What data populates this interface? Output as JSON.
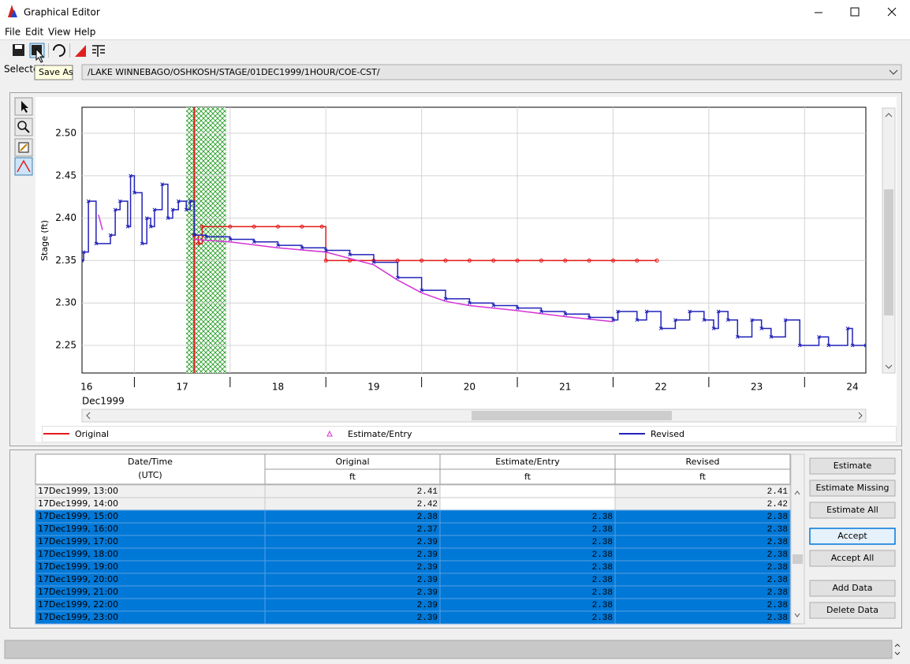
{
  "window": {
    "title": "Graphical Editor"
  },
  "menu": [
    "File",
    "Edit",
    "View",
    "Help"
  ],
  "tooltip": "Save As",
  "selected_label": "Selected",
  "pathname": "/LAKE WINNEBAGO/OSHKOSH/STAGE/01DEC1999/1HOUR/COE-CST/",
  "chart_data": {
    "type": "line",
    "ylabel": "Stage (ft)",
    "x_sublabel": "Dec1999",
    "xlim": [
      16.453,
      24.64
    ],
    "ylim": [
      2.2175,
      2.5307
    ],
    "xticks": [
      16,
      17,
      18,
      19,
      20,
      21,
      22,
      23,
      24
    ],
    "yticks": [
      2.25,
      {
        "value": 2.3,
        "label": "2.30"
      },
      2.35,
      {
        "value": 2.4,
        "label": "2.40"
      },
      2.45,
      {
        "value": 2.5,
        "label": "2.50"
      }
    ],
    "grid": true,
    "highlight_range": [
      17.542,
      17.958
    ],
    "cursor_x": 17.625,
    "series": [
      {
        "name": "Original",
        "color": "#e31a1a",
        "marker": "circle",
        "step": true,
        "x": [
          17.625,
          17.667,
          17.708,
          18.0,
          18.25,
          18.5,
          18.75,
          18.958,
          19.0,
          19.25,
          19.5,
          19.75,
          20.0,
          20.25,
          20.5,
          20.75,
          21.0,
          21.25,
          21.5,
          21.75,
          22.0,
          22.25,
          22.458
        ],
        "values": [
          2.38,
          2.37,
          2.39,
          2.39,
          2.39,
          2.39,
          2.39,
          2.39,
          2.35,
          2.35,
          2.35,
          2.35,
          2.35,
          2.35,
          2.35,
          2.35,
          2.35,
          2.35,
          2.35,
          2.35,
          2.35,
          2.35,
          2.35
        ]
      },
      {
        "name": "Estimate/Entry",
        "color": "#d633d6",
        "marker": "triangle",
        "step": false,
        "x": [
          16.625,
          16.667,
          null,
          17.625,
          18.0,
          18.5,
          19.0,
          19.5,
          19.75,
          20.0,
          20.25,
          20.5,
          21.0,
          21.5,
          22.0
        ],
        "values": [
          2.404,
          2.386,
          null,
          2.375,
          2.372,
          2.365,
          2.36,
          2.345,
          2.327,
          2.312,
          2.302,
          2.297,
          2.291,
          2.284,
          2.278
        ]
      },
      {
        "name": "Revised",
        "color": "#2222bb",
        "marker": "x",
        "step": true,
        "x": [
          16.453,
          16.47,
          16.52,
          16.6,
          16.75,
          16.8,
          16.85,
          16.93,
          16.96,
          17.0,
          17.08,
          17.13,
          17.17,
          17.21,
          17.29,
          17.35,
          17.4,
          17.46,
          17.542,
          17.583,
          17.625,
          17.75,
          18.0,
          18.25,
          18.5,
          18.75,
          19.0,
          19.25,
          19.5,
          19.75,
          20.0,
          20.25,
          20.5,
          20.75,
          21.0,
          21.25,
          21.5,
          21.75,
          22.0,
          22.05,
          22.25,
          22.35,
          22.5,
          22.65,
          22.8,
          22.95,
          23.05,
          23.1,
          23.2,
          23.3,
          23.45,
          23.55,
          23.65,
          23.8,
          23.95,
          24.15,
          24.25,
          24.45,
          24.5,
          24.64
        ],
        "values": [
          2.35,
          2.36,
          2.42,
          2.37,
          2.38,
          2.41,
          2.42,
          2.39,
          2.45,
          2.43,
          2.37,
          2.4,
          2.39,
          2.41,
          2.44,
          2.4,
          2.41,
          2.42,
          2.41,
          2.42,
          2.38,
          2.378,
          2.375,
          2.372,
          2.368,
          2.365,
          2.362,
          2.357,
          2.348,
          2.33,
          2.315,
          2.305,
          2.3,
          2.297,
          2.294,
          2.29,
          2.287,
          2.283,
          2.28,
          2.29,
          2.28,
          2.29,
          2.27,
          2.28,
          2.29,
          2.28,
          2.27,
          2.29,
          2.28,
          2.26,
          2.28,
          2.27,
          2.26,
          2.28,
          2.25,
          2.26,
          2.25,
          2.27,
          2.25,
          2.25
        ]
      }
    ]
  },
  "table": {
    "headers": [
      [
        "Date/Time",
        "(UTC)"
      ],
      [
        "Original",
        "ft"
      ],
      [
        "Estimate/Entry",
        "ft"
      ],
      [
        "Revised",
        "ft"
      ]
    ],
    "rows": [
      [
        "17Dec1999, 13:00",
        "2.41",
        null,
        "2.41"
      ],
      [
        "17Dec1999, 14:00",
        "2.42",
        null,
        "2.42"
      ],
      [
        "17Dec1999, 15:00",
        "2.38",
        "2.38",
        "2.38"
      ],
      [
        "17Dec1999, 16:00",
        "2.37",
        "2.38",
        "2.38"
      ],
      [
        "17Dec1999, 17:00",
        "2.39",
        "2.38",
        "2.38"
      ],
      [
        "17Dec1999, 18:00",
        "2.39",
        "2.38",
        "2.38"
      ],
      [
        "17Dec1999, 19:00",
        "2.39",
        "2.38",
        "2.38"
      ],
      [
        "17Dec1999, 20:00",
        "2.39",
        "2.38",
        "2.38"
      ],
      [
        "17Dec1999, 21:00",
        "2.39",
        "2.38",
        "2.38"
      ],
      [
        "17Dec1999, 22:00",
        "2.39",
        "2.38",
        "2.38"
      ],
      [
        "17Dec1999, 23:00",
        "2.39",
        "2.38",
        "2.38"
      ]
    ],
    "selected_rows": [
      2,
      3,
      4,
      5,
      6,
      7,
      8,
      9,
      10
    ]
  },
  "buttons": [
    "Estimate",
    "Estimate Missing",
    "Estimate All",
    "Accept",
    "Accept All",
    "Add Data",
    "Delete Data"
  ]
}
